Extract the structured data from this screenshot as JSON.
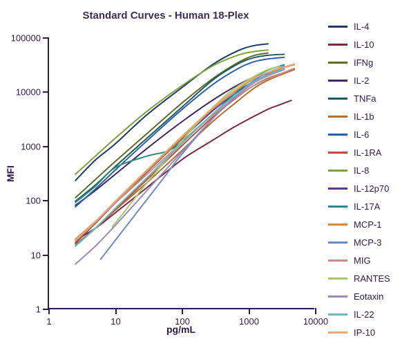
{
  "chart": {
    "type": "line-log-log",
    "title": "Standard Curves - Human 18-Plex",
    "title_fontsize": 15,
    "title_color": "#3a2d5a",
    "background_color": "#ffffff",
    "axis_color": "#2e1a4a",
    "tick_label_fontsize": 13,
    "axis_title_fontsize": 14,
    "xlabel": "pg/mL",
    "ylabel": "MFI",
    "x_scale": "log10",
    "y_scale": "log10",
    "xlim": [
      1,
      10000
    ],
    "ylim": [
      1,
      100000
    ],
    "x_ticks": [
      1,
      10,
      100,
      1000,
      10000
    ],
    "y_ticks": [
      1,
      10,
      100,
      1000,
      10000,
      100000
    ],
    "line_width": 2,
    "series": [
      {
        "name": "IL-4",
        "color": "#1e3a60",
        "points": [
          [
            2.5,
            230
          ],
          [
            5,
            550
          ],
          [
            10,
            1100
          ],
          [
            30,
            3800
          ],
          [
            100,
            12000
          ],
          [
            300,
            33000
          ],
          [
            700,
            58000
          ],
          [
            1200,
            72000
          ],
          [
            2000,
            78000
          ]
        ]
      },
      {
        "name": "IL-10",
        "color": "#7a2a42",
        "points": [
          [
            2.5,
            18
          ],
          [
            5,
            30
          ],
          [
            10,
            58
          ],
          [
            30,
            170
          ],
          [
            60,
            340
          ],
          [
            120,
            650
          ],
          [
            300,
            1300
          ],
          [
            600,
            2200
          ],
          [
            1100,
            3300
          ],
          [
            2000,
            4800
          ],
          [
            3000,
            5800
          ],
          [
            4500,
            7000
          ]
        ]
      },
      {
        "name": "IFNg",
        "color": "#5f6a2b",
        "points": [
          [
            2.5,
            110
          ],
          [
            5,
            240
          ],
          [
            10,
            520
          ],
          [
            30,
            1700
          ],
          [
            100,
            6200
          ],
          [
            300,
            18000
          ],
          [
            700,
            35000
          ],
          [
            1200,
            47000
          ],
          [
            2000,
            53000
          ]
        ]
      },
      {
        "name": "IL-2",
        "color": "#3d2a5f",
        "points": [
          [
            2.5,
            80
          ],
          [
            5,
            150
          ],
          [
            10,
            300
          ],
          [
            30,
            900
          ],
          [
            100,
            2800
          ],
          [
            300,
            7200
          ],
          [
            700,
            13500
          ],
          [
            1200,
            18500
          ],
          [
            2000,
            22000
          ],
          [
            3500,
            27000
          ]
        ]
      },
      {
        "name": "TNFa",
        "color": "#1d5a5a",
        "points": [
          [
            2.5,
            95
          ],
          [
            5,
            190
          ],
          [
            10,
            420
          ],
          [
            30,
            1400
          ],
          [
            100,
            5200
          ],
          [
            300,
            17000
          ],
          [
            700,
            33000
          ],
          [
            1200,
            43000
          ],
          [
            2000,
            48000
          ],
          [
            3500,
            50000
          ]
        ]
      },
      {
        "name": "IL-1b",
        "color": "#b07030",
        "points": [
          [
            2.5,
            15
          ],
          [
            5,
            30
          ],
          [
            10,
            65
          ],
          [
            30,
            210
          ],
          [
            100,
            820
          ],
          [
            300,
            2900
          ],
          [
            700,
            6800
          ],
          [
            1200,
            11500
          ],
          [
            2000,
            16500
          ],
          [
            3500,
            22000
          ],
          [
            5000,
            26000
          ]
        ]
      },
      {
        "name": "IL-6",
        "color": "#2b5fa8",
        "points": [
          [
            2.5,
            75
          ],
          [
            5,
            160
          ],
          [
            10,
            360
          ],
          [
            30,
            1250
          ],
          [
            100,
            4700
          ],
          [
            300,
            14000
          ],
          [
            700,
            27000
          ],
          [
            1200,
            36000
          ],
          [
            2000,
            41000
          ],
          [
            3500,
            44000
          ]
        ]
      },
      {
        "name": "IL-1RA",
        "color": "#c24a3a",
        "points": [
          [
            2.5,
            14
          ],
          [
            5,
            30
          ],
          [
            10,
            66
          ],
          [
            30,
            240
          ],
          [
            100,
            1000
          ],
          [
            300,
            3500
          ],
          [
            700,
            8200
          ],
          [
            1200,
            13000
          ],
          [
            2000,
            18000
          ],
          [
            3500,
            23000
          ],
          [
            5000,
            27000
          ]
        ]
      },
      {
        "name": "IL-8",
        "color": "#7ca23a",
        "points": [
          [
            2.5,
            300
          ],
          [
            5,
            650
          ],
          [
            10,
            1400
          ],
          [
            30,
            4400
          ],
          [
            100,
            13000
          ],
          [
            300,
            31000
          ],
          [
            700,
            48000
          ],
          [
            1200,
            56000
          ],
          [
            2000,
            60000
          ]
        ]
      },
      {
        "name": "IL-12p70",
        "color": "#5a3a8a",
        "points": [
          [
            2.5,
            16
          ],
          [
            5,
            37
          ],
          [
            10,
            88
          ],
          [
            30,
            330
          ],
          [
            100,
            1350
          ],
          [
            300,
            4600
          ],
          [
            700,
            10200
          ],
          [
            1200,
            15500
          ],
          [
            2000,
            20500
          ],
          [
            3500,
            26500
          ]
        ]
      },
      {
        "name": "IL-17A",
        "color": "#2a8a8a",
        "points": [
          [
            2.5,
            90
          ],
          [
            5,
            180
          ],
          [
            10,
            400
          ],
          [
            30,
            650
          ],
          [
            60,
            800
          ],
          [
            100,
            1200
          ],
          [
            300,
            4000
          ],
          [
            700,
            10500
          ],
          [
            1200,
            18000
          ],
          [
            2000,
            25500
          ],
          [
            3500,
            32000
          ]
        ]
      },
      {
        "name": "MCP-1",
        "color": "#d48a3a",
        "points": [
          [
            2.5,
            17
          ],
          [
            5,
            38
          ],
          [
            10,
            90
          ],
          [
            30,
            340
          ],
          [
            100,
            1400
          ],
          [
            300,
            5000
          ],
          [
            700,
            11200
          ],
          [
            1200,
            17200
          ],
          [
            2000,
            22500
          ],
          [
            3500,
            28500
          ],
          [
            5000,
            32000
          ]
        ]
      },
      {
        "name": "MCP-3",
        "color": "#6a8ac8",
        "points": [
          [
            6,
            8
          ],
          [
            10,
            18
          ],
          [
            20,
            54
          ],
          [
            50,
            230
          ],
          [
            100,
            700
          ],
          [
            300,
            3300
          ],
          [
            700,
            9200
          ],
          [
            1200,
            16000
          ],
          [
            2000,
            23000
          ],
          [
            3500,
            30000
          ]
        ]
      },
      {
        "name": "MIG",
        "color": "#c88a8a",
        "points": [
          [
            2.5,
            19
          ],
          [
            5,
            40
          ],
          [
            10,
            88
          ],
          [
            30,
            300
          ],
          [
            100,
            1150
          ],
          [
            300,
            3800
          ],
          [
            700,
            8400
          ],
          [
            1200,
            13000
          ],
          [
            2000,
            17500
          ],
          [
            3500,
            23000
          ],
          [
            5000,
            27500
          ]
        ]
      },
      {
        "name": "RANTES",
        "color": "#a8c86a",
        "points": [
          [
            9,
            32
          ],
          [
            15,
            70
          ],
          [
            30,
            210
          ],
          [
            70,
            720
          ],
          [
            150,
            2200
          ],
          [
            300,
            5300
          ],
          [
            600,
            11200
          ],
          [
            1200,
            19000
          ],
          [
            2000,
            26000
          ],
          [
            3000,
            30000
          ]
        ]
      },
      {
        "name": "Eotaxin",
        "color": "#9a8ab8",
        "points": [
          [
            2.5,
            6.5
          ],
          [
            5,
            14
          ],
          [
            10,
            34
          ],
          [
            30,
            150
          ],
          [
            100,
            770
          ],
          [
            300,
            3300
          ],
          [
            700,
            8700
          ],
          [
            1200,
            14500
          ],
          [
            2000,
            20000
          ],
          [
            3500,
            26000
          ]
        ]
      },
      {
        "name": "IL-22",
        "color": "#6ab8b8",
        "points": [
          [
            2.5,
            14
          ],
          [
            5,
            30
          ],
          [
            10,
            70
          ],
          [
            30,
            260
          ],
          [
            100,
            1100
          ],
          [
            300,
            4000
          ],
          [
            700,
            9400
          ],
          [
            1200,
            15200
          ],
          [
            2000,
            21000
          ],
          [
            3500,
            27000
          ]
        ]
      },
      {
        "name": "IP-10",
        "color": "#e8a878",
        "points": [
          [
            2.5,
            18
          ],
          [
            5,
            40
          ],
          [
            10,
            95
          ],
          [
            30,
            360
          ],
          [
            100,
            1500
          ],
          [
            300,
            5200
          ],
          [
            700,
            11700
          ],
          [
            1200,
            17800
          ],
          [
            2000,
            23200
          ],
          [
            3500,
            29000
          ],
          [
            5000,
            33000
          ]
        ]
      }
    ]
  }
}
